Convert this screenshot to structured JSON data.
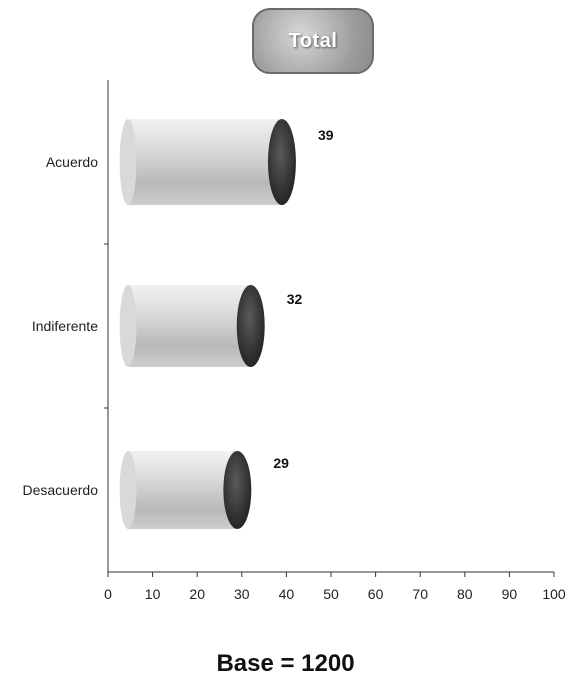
{
  "chart_data": {
    "type": "bar",
    "orientation": "horizontal",
    "title": "Total",
    "categories": [
      "Acuerdo",
      "Indiferente",
      "Desacuerdo"
    ],
    "values": [
      39,
      32,
      29
    ],
    "data_labels": [
      "39",
      "32",
      "29"
    ],
    "xlim": [
      0,
      100
    ],
    "x_ticks": [
      "0",
      "10",
      "20",
      "30",
      "40",
      "50",
      "60",
      "70",
      "80",
      "90",
      "100"
    ],
    "grid": false,
    "bar_style": "3d-cylinder",
    "colors": {
      "bar_body": "#bdbdbd",
      "bar_cap": "#2e2e2e"
    }
  },
  "footer": {
    "base_text": "Base = 1200"
  }
}
